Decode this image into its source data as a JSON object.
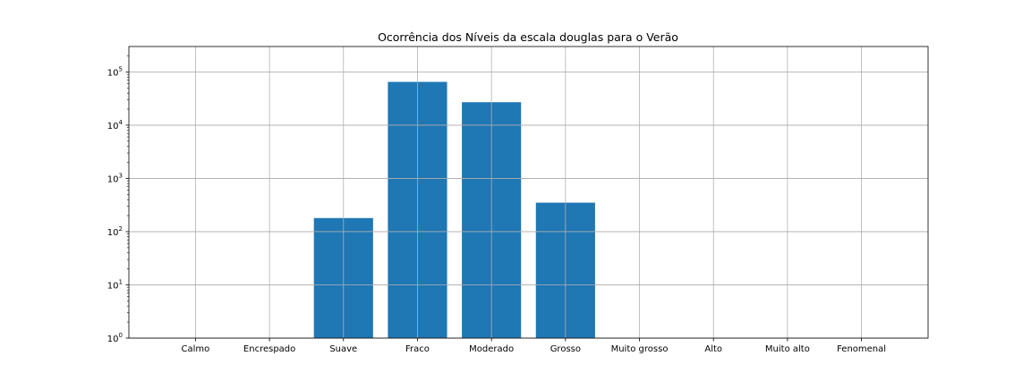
{
  "chart_data": {
    "type": "bar",
    "title": "Ocorrência dos Níveis da escala douglas para o Verão",
    "xlabel": "",
    "ylabel": "",
    "yscale": "log",
    "ylim": [
      1,
      300000
    ],
    "y_ticks": [
      {
        "value": 1,
        "base": "10",
        "exp": "0"
      },
      {
        "value": 10,
        "base": "10",
        "exp": "1"
      },
      {
        "value": 100,
        "base": "10",
        "exp": "2"
      },
      {
        "value": 1000,
        "base": "10",
        "exp": "3"
      },
      {
        "value": 10000,
        "base": "10",
        "exp": "4"
      },
      {
        "value": 100000,
        "base": "10",
        "exp": "5"
      }
    ],
    "grid": true,
    "bar_color": "#1f77b4",
    "categories": [
      "Calmo",
      "Encrespado",
      "Suave",
      "Fraco",
      "Moderado",
      "Grosso",
      "Muito grosso",
      "Alto",
      "Muito alto",
      "Fenomenal"
    ],
    "values": [
      0,
      0,
      180,
      65000,
      27000,
      350,
      0,
      0,
      0,
      0
    ]
  }
}
